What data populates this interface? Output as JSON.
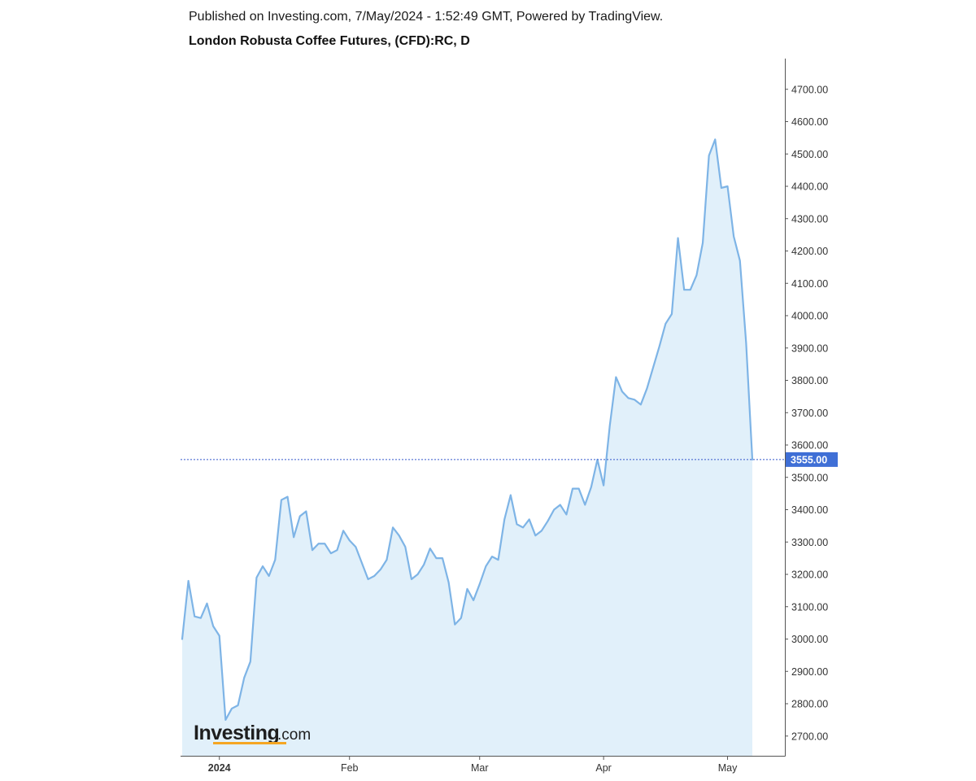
{
  "header": {
    "published": "Published on Investing.com, 7/May/2024 - 1:52:49 GMT, Powered by TradingView.",
    "title": "London Robusta Coffee Futures, (CFD):RC, D"
  },
  "logo": {
    "main": "Investing",
    "sub": ".com"
  },
  "colors": {
    "line": "#7eb4e6",
    "area": "#e1f0fa",
    "price_label_bg": "#3f6fd6",
    "price_line": "#3557cc",
    "axis": "#555555"
  },
  "chart_data": {
    "type": "area",
    "title": "London Robusta Coffee Futures, (CFD):RC, D",
    "xlabel": "",
    "ylabel": "",
    "ylim": [
      2630,
      4790
    ],
    "y_ticks": [
      "2700.00",
      "2800.00",
      "2900.00",
      "3000.00",
      "3100.00",
      "3200.00",
      "3300.00",
      "3400.00",
      "3500.00",
      "3600.00",
      "3700.00",
      "3800.00",
      "3900.00",
      "4000.00",
      "4100.00",
      "4200.00",
      "4300.00",
      "4400.00",
      "4500.00",
      "4600.00",
      "4700.00"
    ],
    "x_ticks": [
      {
        "label": "2024",
        "index": 6,
        "bold": true
      },
      {
        "label": "Feb",
        "index": 27,
        "bold": false
      },
      {
        "label": "Mar",
        "index": 48,
        "bold": false
      },
      {
        "label": "Apr",
        "index": 68,
        "bold": false
      },
      {
        "label": "May",
        "index": 88,
        "bold": false
      }
    ],
    "last_price": 3555,
    "last_price_label": "3555.00",
    "series": [
      {
        "values": [
          3000,
          3180,
          3070,
          3065,
          3110,
          3040,
          3010,
          2750,
          2785,
          2795,
          2880,
          2930,
          3190,
          3225,
          3195,
          3245,
          3430,
          3440,
          3315,
          3380,
          3395,
          3275,
          3295,
          3295,
          3265,
          3275,
          3335,
          3305,
          3285,
          3235,
          3185,
          3195,
          3215,
          3245,
          3345,
          3320,
          3285,
          3185,
          3200,
          3230,
          3280,
          3250,
          3250,
          3175,
          3045,
          3065,
          3155,
          3120,
          3170,
          3225,
          3255,
          3245,
          3370,
          3445,
          3355,
          3345,
          3370,
          3320,
          3335,
          3365,
          3400,
          3415,
          3385,
          3465,
          3465,
          3415,
          3470,
          3555,
          3475,
          3660,
          3810,
          3765,
          3745,
          3740,
          3725,
          3775,
          3840,
          3905,
          3975,
          4005,
          4240,
          4080,
          4080,
          4125,
          4225,
          4495,
          4545,
          4395,
          4400,
          4245,
          4170,
          3915,
          3555
        ]
      }
    ]
  }
}
